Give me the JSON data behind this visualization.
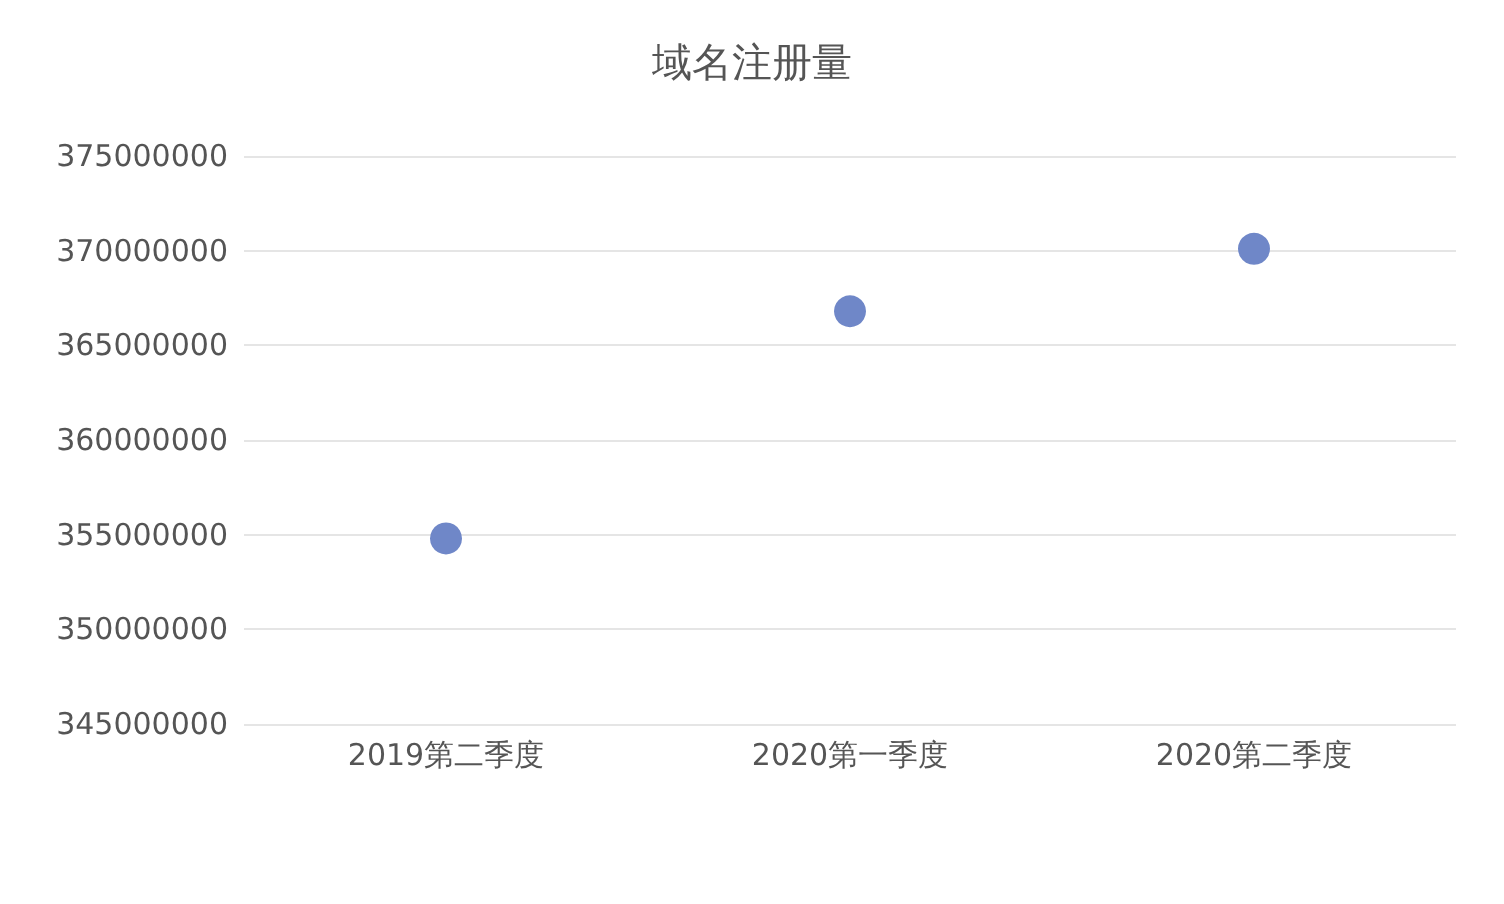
{
  "chart_data": {
    "type": "scatter",
    "title": "域名注册量",
    "categories": [
      "2019第二季度",
      "2020第一季度",
      "2020第二季度"
    ],
    "series": [
      {
        "color": "#6f87c8",
        "values": [
          354800000,
          366800000,
          370100000
        ]
      }
    ],
    "ylim": [
      345000000,
      375000000
    ],
    "yticks": [
      345000000,
      350000000,
      355000000,
      360000000,
      365000000,
      370000000,
      375000000
    ],
    "grid": "y",
    "marker": "circle"
  }
}
